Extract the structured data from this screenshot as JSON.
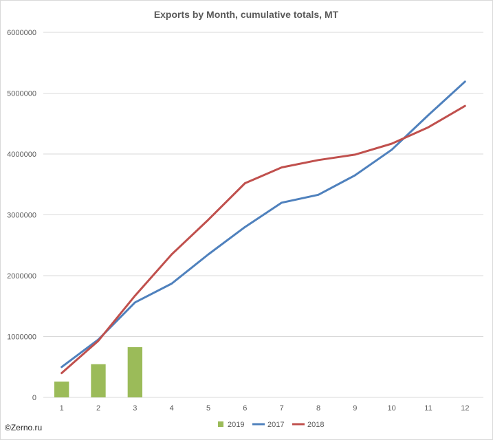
{
  "chart_data": {
    "type": "bar+line",
    "title": "Exports by Month, cumulative totals, MT",
    "categories": [
      "1",
      "2",
      "3",
      "4",
      "5",
      "6",
      "7",
      "8",
      "9",
      "10",
      "11",
      "12"
    ],
    "ylim": [
      0,
      6000000
    ],
    "yticks": [
      "0",
      "1000000",
      "2000000",
      "3000000",
      "4000000",
      "5000000",
      "6000000"
    ],
    "grid": "horizontal",
    "legend_position": "bottom",
    "series": [
      {
        "name": "2019",
        "type": "bar",
        "color": "#9bbb59",
        "values": [
          260000,
          545000,
          825000,
          null,
          null,
          null,
          null,
          null,
          null,
          null,
          null,
          null
        ]
      },
      {
        "name": "2017",
        "type": "line",
        "color": "#4f81bd",
        "values": [
          500000,
          950000,
          1560000,
          1870000,
          2350000,
          2800000,
          3200000,
          3330000,
          3650000,
          4070000,
          4640000,
          5190000
        ]
      },
      {
        "name": "2018",
        "type": "line",
        "color": "#c0504d",
        "values": [
          400000,
          930000,
          1670000,
          2350000,
          2920000,
          3520000,
          3780000,
          3900000,
          3990000,
          4170000,
          4440000,
          4790000
        ]
      }
    ]
  },
  "credit": "©Zerno.ru"
}
